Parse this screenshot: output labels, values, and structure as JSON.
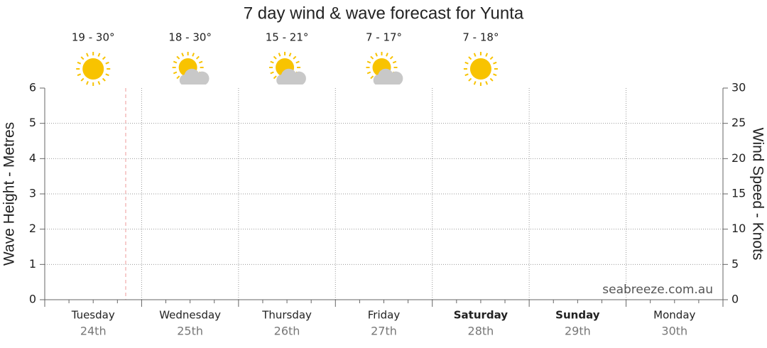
{
  "chart_data": {
    "type": "line",
    "title": "7 day wind & wave forecast for Yunta",
    "categories": [
      "Tuesday",
      "Wednesday",
      "Thursday",
      "Friday",
      "Saturday",
      "Sunday",
      "Monday"
    ],
    "dates": [
      "24th",
      "25th",
      "26th",
      "27th",
      "28th",
      "29th",
      "30th"
    ],
    "emphasis": [
      false,
      false,
      false,
      false,
      true,
      true,
      false
    ],
    "forecasts": [
      {
        "temps": "19 - 30°",
        "icon": "sunny"
      },
      {
        "temps": "18 - 30°",
        "icon": "partly-cloudy"
      },
      {
        "temps": "15 - 21°",
        "icon": "partly-cloudy"
      },
      {
        "temps": "7 - 17°",
        "icon": "partly-cloudy"
      },
      {
        "temps": "7 - 18°",
        "icon": "sunny"
      }
    ],
    "ylabel": "Wave Height - Metres",
    "ylim": [
      0,
      6
    ],
    "yticks": [
      0,
      1,
      2,
      3,
      4,
      5,
      6
    ],
    "y2label": "Wind Speed - Knots",
    "y2lim": [
      0,
      30
    ],
    "y2ticks": [
      0,
      5,
      10,
      15,
      20,
      25,
      30
    ],
    "grid": true,
    "watermark": "seabreeze.com.au"
  }
}
